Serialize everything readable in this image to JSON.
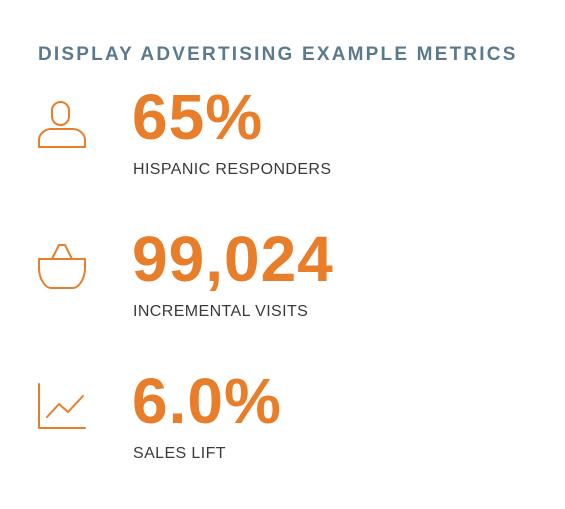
{
  "title": "DISPLAY ADVERTISING EXAMPLE METRICS",
  "colors": {
    "accent": "#e87d2a",
    "title": "#5b7a8e",
    "label": "#3a3a3a"
  },
  "metrics": [
    {
      "icon": "person-icon",
      "value": "65%",
      "label": "HISPANIC RESPONDERS"
    },
    {
      "icon": "shopping-basket-icon",
      "value": "99,024",
      "label": "INCREMENTAL VISITS"
    },
    {
      "icon": "line-chart-icon",
      "value": "6.0%",
      "label": "SALES LIFT"
    }
  ]
}
